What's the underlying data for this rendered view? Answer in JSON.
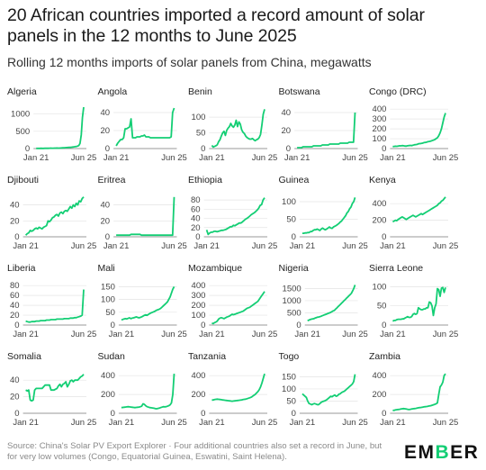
{
  "title": "20 African countries imported a record amount of solar panels in the 12 months to June 2025",
  "subtitle": "Rolling 12 months imports of solar panels from China, megawatts",
  "source": "Source: China's Solar PV Export Explorer · Four additional countries also set a record in June, but for very low volumes (Congo, Equatorial Guinea, Eswatini, Saint Helena).",
  "logo": {
    "pre": "EM",
    "accent": "B",
    "post": "ER"
  },
  "colors": {
    "line": "#13ce74",
    "grid": "#e4e4e4",
    "axis": "#777777",
    "text": "#444444"
  },
  "chart_data": [
    {
      "type": "line",
      "title": "Algeria",
      "x_tick_labels": [
        "Jan 21",
        "Jun 25"
      ],
      "yticks": [
        0,
        500,
        1000
      ],
      "ylim": [
        0,
        1200
      ],
      "values": [
        5,
        5,
        6,
        6,
        7,
        6,
        5,
        8,
        10,
        9,
        8,
        10,
        12,
        11,
        10,
        12,
        14,
        15,
        13,
        14,
        16,
        18,
        20,
        22,
        25,
        28,
        30,
        33,
        35,
        40,
        45,
        50,
        55,
        60,
        70,
        90,
        150,
        400,
        900,
        1200
      ]
    },
    {
      "type": "line",
      "title": "Angola",
      "x_tick_labels": [
        "Jan 21",
        "Jun 25"
      ],
      "yticks": [
        0,
        20,
        40
      ],
      "ylim": [
        0,
        46
      ],
      "values": [
        3,
        6,
        8,
        10,
        10,
        12,
        22,
        22,
        23,
        24,
        33,
        12,
        12,
        12,
        13,
        13,
        13,
        14,
        14,
        15,
        13,
        13,
        13,
        12,
        12,
        12,
        12,
        12,
        12,
        12,
        12,
        12,
        12,
        12,
        12,
        12,
        12,
        13,
        40,
        45
      ]
    },
    {
      "type": "line",
      "title": "Benin",
      "x_tick_labels": [
        "Jan 21",
        "Jun 25"
      ],
      "yticks": [
        0,
        50,
        100
      ],
      "ylim": [
        0,
        132
      ],
      "values": [
        10,
        5,
        7,
        9,
        12,
        22,
        28,
        40,
        50,
        55,
        42,
        58,
        65,
        70,
        80,
        72,
        68,
        75,
        90,
        70,
        85,
        78,
        60,
        52,
        48,
        40,
        35,
        32,
        30,
        30,
        32,
        28,
        25,
        28,
        30,
        35,
        45,
        75,
        110,
        125
      ]
    },
    {
      "type": "line",
      "title": "Botswana",
      "x_tick_labels": [
        "Jan 21",
        "Jun 25"
      ],
      "yticks": [
        0,
        20,
        40
      ],
      "ylim": [
        0,
        46
      ],
      "values": [
        1,
        1,
        1,
        1,
        2,
        2,
        2,
        2,
        2,
        2,
        2,
        3,
        3,
        3,
        3,
        3,
        3,
        4,
        4,
        4,
        4,
        4,
        5,
        5,
        5,
        5,
        5,
        5,
        5,
        6,
        6,
        6,
        6,
        6,
        6,
        7,
        7,
        7,
        7,
        40
      ]
    },
    {
      "type": "line",
      "title": "Congo (DRC)",
      "x_tick_labels": [
        "Jan 21",
        "Jun 25"
      ],
      "yticks": [
        0,
        100,
        200,
        300,
        400
      ],
      "ylim": [
        0,
        420
      ],
      "values": [
        20,
        22,
        24,
        23,
        26,
        28,
        27,
        30,
        28,
        26,
        25,
        28,
        30,
        32,
        30,
        34,
        38,
        40,
        42,
        48,
        50,
        52,
        55,
        60,
        62,
        65,
        70,
        72,
        75,
        80,
        85,
        90,
        100,
        110,
        130,
        160,
        200,
        260,
        320,
        360
      ]
    },
    {
      "type": "line",
      "title": "Djibouti",
      "x_tick_labels": [
        "Jan 21",
        "Jun 25"
      ],
      "yticks": [
        0,
        20,
        40
      ],
      "ylim": [
        0,
        52
      ],
      "values": [
        2,
        4,
        5,
        8,
        7,
        8,
        10,
        11,
        10,
        12,
        11,
        10,
        12,
        13,
        14,
        20,
        19,
        21,
        24,
        25,
        27,
        28,
        26,
        30,
        31,
        29,
        32,
        33,
        32,
        35,
        38,
        36,
        40,
        38,
        42,
        40,
        45,
        44,
        48,
        50
      ]
    },
    {
      "type": "line",
      "title": "Eritrea",
      "x_tick_labels": [
        "Jan 21",
        "Jun 25"
      ],
      "yticks": [
        0,
        20,
        40
      ],
      "ylim": [
        0,
        52
      ],
      "values": [
        2,
        2,
        2,
        2,
        2,
        2,
        2,
        2,
        2,
        2,
        3,
        3,
        3,
        3,
        3,
        3,
        3,
        2,
        2,
        2,
        2,
        2,
        2,
        2,
        2,
        2,
        2,
        2,
        2,
        2,
        2,
        2,
        2,
        2,
        2,
        2,
        2,
        2,
        2,
        50
      ]
    },
    {
      "type": "line",
      "title": "Ethiopia",
      "x_tick_labels": [
        "Jan 21",
        "Jun 25"
      ],
      "yticks": [
        0,
        20,
        40,
        60,
        80
      ],
      "ylim": [
        0,
        90
      ],
      "values": [
        15,
        5,
        8,
        10,
        10,
        12,
        12,
        11,
        12,
        13,
        14,
        14,
        15,
        16,
        18,
        20,
        22,
        22,
        25,
        24,
        26,
        28,
        30,
        30,
        32,
        35,
        38,
        40,
        42,
        45,
        48,
        50,
        52,
        55,
        58,
        62,
        68,
        70,
        80,
        85
      ]
    },
    {
      "type": "line",
      "title": "Guinea",
      "x_tick_labels": [
        "Jan 21",
        "Jun 25"
      ],
      "yticks": [
        0,
        50,
        100
      ],
      "ylim": [
        0,
        118
      ],
      "values": [
        10,
        10,
        11,
        11,
        12,
        12,
        15,
        15,
        18,
        20,
        20,
        22,
        20,
        18,
        22,
        25,
        22,
        20,
        22,
        25,
        28,
        25,
        24,
        28,
        30,
        32,
        35,
        38,
        42,
        45,
        50,
        55,
        60,
        68,
        72,
        80,
        85,
        95,
        100,
        112
      ]
    },
    {
      "type": "line",
      "title": "Kenya",
      "x_tick_labels": [
        "Jan 21",
        "Jun 25"
      ],
      "yticks": [
        0,
        200,
        400
      ],
      "ylim": [
        0,
        500
      ],
      "values": [
        180,
        190,
        200,
        195,
        210,
        220,
        230,
        240,
        230,
        220,
        210,
        220,
        230,
        240,
        250,
        260,
        250,
        240,
        250,
        260,
        270,
        280,
        270,
        280,
        290,
        300,
        310,
        320,
        330,
        340,
        350,
        360,
        370,
        380,
        400,
        410,
        430,
        440,
        460,
        480
      ]
    },
    {
      "type": "line",
      "title": "Liberia",
      "x_tick_labels": [
        "Jan 21",
        "Jun 25"
      ],
      "yticks": [
        0,
        20,
        40,
        60,
        80
      ],
      "ylim": [
        0,
        84
      ],
      "values": [
        8,
        7,
        6,
        6,
        7,
        7,
        7,
        8,
        8,
        8,
        9,
        9,
        9,
        9,
        10,
        10,
        10,
        11,
        11,
        11,
        11,
        12,
        12,
        12,
        12,
        12,
        13,
        13,
        13,
        13,
        14,
        14,
        14,
        15,
        15,
        16,
        17,
        18,
        20,
        72
      ]
    },
    {
      "type": "line",
      "title": "Mali",
      "x_tick_labels": [
        "Jan 21",
        "Jun 25"
      ],
      "yticks": [
        0,
        50,
        100,
        150
      ],
      "ylim": [
        0,
        162
      ],
      "values": [
        20,
        22,
        24,
        25,
        24,
        26,
        28,
        25,
        27,
        28,
        30,
        32,
        30,
        28,
        30,
        32,
        35,
        38,
        40,
        38,
        42,
        45,
        48,
        50,
        52,
        55,
        58,
        60,
        62,
        65,
        70,
        75,
        80,
        85,
        90,
        100,
        110,
        125,
        140,
        150
      ]
    },
    {
      "type": "line",
      "title": "Mozambique",
      "x_tick_labels": [
        "Jan 21",
        "Jun 25"
      ],
      "yticks": [
        0,
        100,
        200,
        300,
        400
      ],
      "ylim": [
        0,
        420
      ],
      "values": [
        20,
        15,
        25,
        30,
        40,
        60,
        70,
        75,
        70,
        65,
        72,
        80,
        85,
        90,
        100,
        110,
        105,
        110,
        115,
        120,
        125,
        130,
        135,
        140,
        150,
        160,
        170,
        175,
        180,
        190,
        200,
        210,
        220,
        230,
        240,
        260,
        280,
        300,
        320,
        340
      ]
    },
    {
      "type": "line",
      "title": "Nigeria",
      "x_tick_labels": [
        "Jan 21",
        "Jun 25"
      ],
      "yticks": [
        0,
        500,
        1000,
        1500
      ],
      "ylim": [
        0,
        1700
      ],
      "values": [
        180,
        200,
        220,
        240,
        250,
        260,
        280,
        300,
        320,
        330,
        340,
        360,
        380,
        400,
        420,
        440,
        460,
        480,
        500,
        520,
        550,
        580,
        600,
        650,
        700,
        750,
        800,
        850,
        900,
        950,
        1000,
        1050,
        1100,
        1150,
        1200,
        1250,
        1300,
        1400,
        1500,
        1650
      ]
    },
    {
      "type": "line",
      "title": "Sierra Leone",
      "x_tick_labels": [
        "Jan 21",
        "Jun 25"
      ],
      "yticks": [
        0,
        50,
        100
      ],
      "ylim": [
        0,
        108
      ],
      "values": [
        10,
        12,
        12,
        14,
        15,
        15,
        15,
        16,
        16,
        18,
        20,
        22,
        20,
        20,
        22,
        28,
        30,
        28,
        30,
        45,
        42,
        40,
        40,
        42,
        42,
        45,
        45,
        60,
        58,
        50,
        25,
        45,
        55,
        95,
        92,
        75,
        96,
        98,
        85,
        98
      ]
    },
    {
      "type": "line",
      "title": "Somalia",
      "x_tick_labels": [
        "Jan 21",
        "Jun 25"
      ],
      "yticks": [
        0,
        20,
        40
      ],
      "ylim": [
        0,
        50
      ],
      "values": [
        28,
        27,
        28,
        16,
        15,
        16,
        28,
        30,
        30,
        30,
        30,
        30,
        32,
        34,
        34,
        34,
        34,
        28,
        28,
        28,
        29,
        30,
        33,
        35,
        32,
        35,
        36,
        38,
        32,
        35,
        39,
        40,
        38,
        40,
        40,
        40,
        42,
        44,
        45,
        47
      ]
    },
    {
      "type": "line",
      "title": "Sudan",
      "x_tick_labels": [
        "Jan 21",
        "Jun 25"
      ],
      "yticks": [
        0,
        200,
        400
      ],
      "ylim": [
        0,
        440
      ],
      "values": [
        60,
        62,
        64,
        66,
        68,
        70,
        68,
        66,
        64,
        62,
        60,
        62,
        64,
        66,
        70,
        75,
        100,
        95,
        80,
        70,
        65,
        60,
        58,
        56,
        54,
        50,
        48,
        52,
        55,
        60,
        65,
        70,
        68,
        70,
        75,
        80,
        90,
        110,
        200,
        420
      ]
    },
    {
      "type": "line",
      "title": "Tanzania",
      "x_tick_labels": [
        "Jan 21",
        "Jun 25"
      ],
      "yticks": [
        0,
        200,
        400
      ],
      "ylim": [
        0,
        440
      ],
      "values": [
        140,
        142,
        145,
        148,
        150,
        148,
        146,
        144,
        142,
        140,
        138,
        136,
        134,
        132,
        130,
        128,
        130,
        132,
        134,
        136,
        138,
        140,
        142,
        145,
        148,
        150,
        155,
        160,
        165,
        170,
        180,
        190,
        200,
        215,
        230,
        250,
        280,
        320,
        370,
        420
      ]
    },
    {
      "type": "line",
      "title": "Togo",
      "x_tick_labels": [
        "Jan 21",
        "Jun 25"
      ],
      "yticks": [
        0,
        50,
        100,
        150
      ],
      "ylim": [
        0,
        170
      ],
      "values": [
        80,
        75,
        70,
        65,
        50,
        40,
        38,
        35,
        38,
        40,
        38,
        36,
        35,
        40,
        45,
        48,
        50,
        52,
        55,
        60,
        65,
        70,
        68,
        72,
        75,
        70,
        72,
        78,
        80,
        85,
        88,
        90,
        95,
        100,
        105,
        110,
        115,
        120,
        130,
        160
      ]
    },
    {
      "type": "line",
      "title": "Zambia",
      "x_tick_labels": [
        "Jan 21",
        "Jun 25"
      ],
      "yticks": [
        0,
        200,
        400
      ],
      "ylim": [
        0,
        440
      ],
      "values": [
        30,
        32,
        35,
        38,
        40,
        42,
        45,
        48,
        50,
        48,
        45,
        42,
        40,
        42,
        45,
        48,
        50,
        52,
        55,
        58,
        60,
        62,
        65,
        68,
        70,
        72,
        75,
        78,
        80,
        85,
        90,
        95,
        100,
        110,
        200,
        280,
        300,
        330,
        400,
        420
      ]
    }
  ]
}
